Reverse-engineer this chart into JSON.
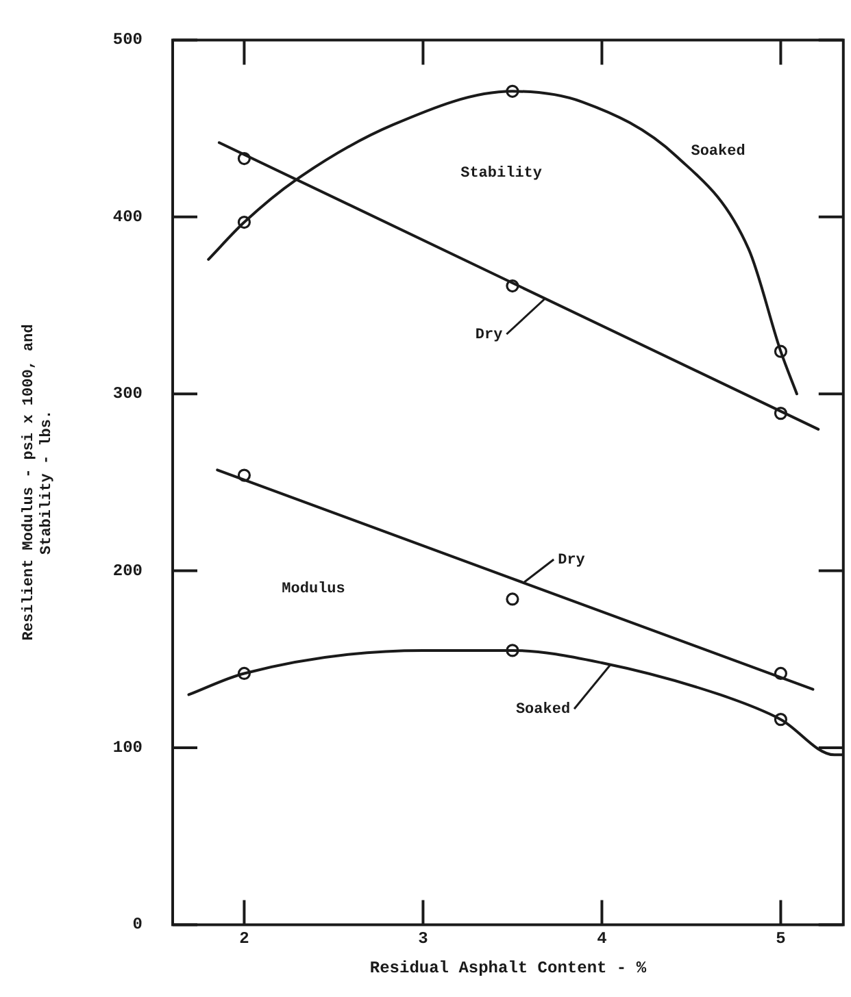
{
  "chart_data": {
    "type": "line",
    "xlabel": "Residual Asphalt Content - %",
    "ylabel": "Resilient Modulus - psi x 1000, and\nStability - lbs.",
    "xlim": [
      1.6,
      5.35
    ],
    "xticks": [
      2,
      3,
      4,
      5
    ],
    "ylim": [
      0,
      500
    ],
    "yticks": [
      0,
      100,
      200,
      300,
      400,
      500
    ],
    "grid": false,
    "legend": false,
    "series": [
      {
        "name": "Soaked",
        "color": "#1a1a1a",
        "marker": "none",
        "x": [
          1.8,
          2,
          2.29,
          2.83,
          3.5,
          3.89,
          4.42,
          4.82,
          5,
          5.09
        ],
        "values": [
          376,
          397,
          421,
          452,
          471,
          465,
          434,
          382,
          324,
          300
        ]
      },
      {
        "type": "scatter",
        "color": "#1a1a1a",
        "marker": "circle",
        "x": [
          2,
          3.5,
          5
        ],
        "values": [
          397,
          471,
          324
        ]
      },
      {
        "name": "Dry",
        "color": "#1a1a1a",
        "marker": "none",
        "x": [
          1.86,
          5.21
        ],
        "values": [
          442,
          280
        ]
      },
      {
        "type": "scatter",
        "color": "#1a1a1a",
        "marker": "circle",
        "x": [
          2,
          3.5,
          5
        ],
        "values": [
          433,
          361,
          289
        ]
      },
      {
        "name": "Dry",
        "color": "#1a1a1a",
        "marker": "none",
        "x": [
          1.85,
          5.18
        ],
        "values": [
          257,
          133
        ]
      },
      {
        "type": "scatter",
        "color": "#1a1a1a",
        "marker": "circle",
        "x": [
          2,
          3.5,
          5
        ],
        "values": [
          254,
          184,
          142
        ]
      },
      {
        "name": "Soaked",
        "color": "#1a1a1a",
        "marker": "none",
        "x": [
          1.69,
          2,
          3,
          3.5,
          4,
          4.66,
          5,
          5.3,
          5.35
        ],
        "values": [
          130,
          142,
          155,
          155,
          148,
          130,
          116,
          96,
          96
        ]
      },
      {
        "type": "scatter",
        "color": "#1a1a1a",
        "marker": "circle",
        "x": [
          2,
          3.5,
          5
        ],
        "values": [
          142,
          155,
          116
        ]
      }
    ],
    "annotations": [
      "Stability",
      "Modulus"
    ]
  }
}
